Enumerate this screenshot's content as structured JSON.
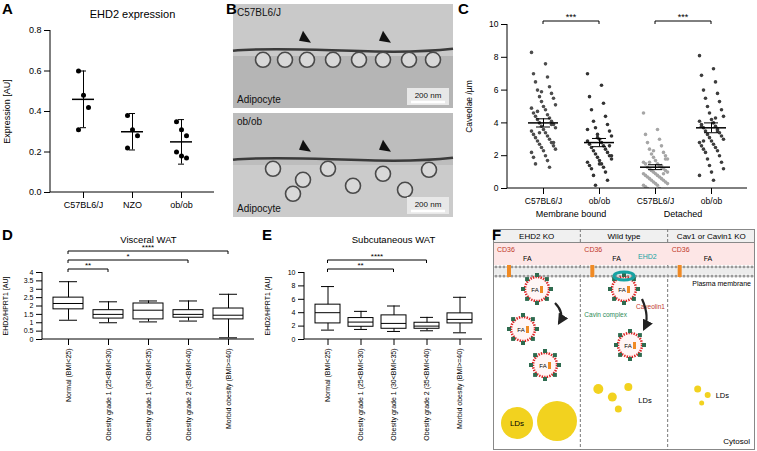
{
  "chart_data": [
    {
      "type": "scatter",
      "panel": "A",
      "title": "EHD2 expression",
      "ylabel": "Expression [AU]",
      "categories": [
        "C57BL6/J",
        "NZO",
        "ob/ob"
      ],
      "values": [
        [
          0.6,
          0.48,
          0.42,
          0.31
        ],
        [
          0.38,
          0.31,
          0.28,
          0.22
        ],
        [
          0.35,
          0.31,
          0.28,
          0.2,
          0.18,
          0.17
        ]
      ],
      "means": [
        0.46,
        0.3,
        0.25
      ],
      "sd": [
        0.14,
        0.09,
        0.11
      ],
      "color": "#000000",
      "ylim": [
        0,
        0.8
      ],
      "yticks": [
        {
          "value": 0,
          "label": "0.0"
        },
        0.2,
        0.4,
        0.6,
        0.8
      ]
    },
    {
      "type": "image",
      "panel": "B",
      "images": [
        {
          "label": "C57BL6/J",
          "cell": "Adipocyte",
          "scale_bar": "200 nm"
        },
        {
          "label": "ob/ob",
          "cell": "Adipocyte",
          "scale_bar": "200 nm"
        }
      ]
    },
    {
      "type": "scatter",
      "panel": "C",
      "ylabel": "Caveolae /µm",
      "categories": [
        "C57BL6/J",
        "ob/ob",
        "C57BL6/J",
        "ob/ob"
      ],
      "groups": [
        {
          "label": "Membrane bound",
          "members": [
            0,
            1
          ]
        },
        {
          "label": "Detached",
          "members": [
            2,
            3
          ]
        }
      ],
      "values": [
        [
          8.3,
          7.6,
          7.0,
          6.8,
          6.5,
          6.2,
          6.0,
          5.8,
          5.6,
          5.5,
          5.3,
          5.1,
          5.0,
          4.9,
          4.8,
          4.6,
          4.5,
          4.4,
          4.3,
          4.2,
          4.1,
          4.0,
          3.9,
          3.8,
          3.7,
          3.6,
          3.5,
          3.4,
          3.3,
          3.2,
          3.1,
          3.0,
          2.9,
          2.8,
          2.7,
          2.6,
          2.5,
          2.4,
          2.3,
          2.2,
          2.0,
          1.9,
          1.7,
          1.5,
          1.3,
          4.7,
          3.9,
          3.4,
          2.8,
          5.9
        ],
        [
          7.0,
          6.3,
          5.6,
          5.2,
          4.8,
          4.4,
          4.1,
          3.9,
          3.7,
          3.5,
          3.3,
          3.2,
          3.0,
          2.9,
          2.8,
          2.7,
          2.6,
          2.5,
          2.4,
          2.3,
          2.2,
          2.1,
          2.0,
          1.9,
          1.8,
          1.7,
          1.6,
          1.5,
          1.4,
          1.3,
          1.2,
          1.0,
          0.8,
          0.5,
          0.2,
          2.6,
          3.1,
          2.0,
          1.5,
          3.6
        ],
        [
          4.6,
          3.6,
          3.3,
          3.0,
          2.8,
          2.6,
          2.4,
          2.2,
          2.1,
          2.0,
          1.9,
          1.8,
          1.7,
          1.6,
          1.5,
          1.5,
          1.4,
          1.3,
          1.3,
          1.2,
          1.2,
          1.1,
          1.1,
          1.0,
          1.0,
          0.9,
          0.9,
          0.8,
          0.8,
          0.7,
          0.7,
          0.6,
          0.6,
          0.5,
          0.5,
          0.4,
          0.4,
          0.3,
          0.3,
          0.2,
          0.2,
          0.1,
          0.0,
          0.0,
          1.4,
          1.6,
          0.9,
          1.1,
          1.8,
          2.3
        ],
        [
          8.1,
          7.3,
          6.9,
          6.5,
          6.0,
          5.8,
          5.5,
          5.3,
          5.0,
          4.8,
          4.6,
          4.4,
          4.2,
          4.1,
          4.0,
          3.9,
          3.8,
          3.7,
          3.6,
          3.5,
          3.4,
          3.3,
          3.2,
          3.1,
          3.0,
          2.9,
          2.8,
          2.7,
          2.6,
          2.5,
          2.4,
          2.3,
          2.2,
          2.0,
          1.8,
          1.6,
          1.4,
          1.2,
          1.0,
          0.8,
          0.5,
          3.8,
          4.3,
          2.9,
          3.5
        ]
      ],
      "means": [
        4.0,
        2.8,
        1.3,
        3.7
      ],
      "sem": [
        0.25,
        0.25,
        0.15,
        0.3
      ],
      "colors": [
        "#4d4d4d",
        "#333333",
        "#a6a6a6",
        "#3d3d3d"
      ],
      "comparisons": [
        {
          "from": 0,
          "to": 1,
          "label": "***"
        },
        {
          "from": 2,
          "to": 3,
          "label": "***"
        }
      ],
      "ylim": [
        0,
        10
      ],
      "yticks": [
        0,
        2,
        4,
        6,
        8,
        10
      ]
    },
    {
      "type": "box",
      "panel": "D",
      "title": "Visceral WAT",
      "ylabel": "EHD2/HPRT1 [AU]",
      "categories": [
        "Normal (BMI<25)",
        "Obesity grade 1 (25<BMI<30)",
        "Obesity grade 1 (30<BMI<35)",
        "Obesity grade 2 (35<BMI<40)",
        "Morbid obesity (BMI>=40)"
      ],
      "min": [
        1.15,
        1.0,
        1.05,
        1.1,
        0.1
      ],
      "q1": [
        1.8,
        1.25,
        1.2,
        1.3,
        1.2
      ],
      "median": [
        2.15,
        1.5,
        1.75,
        1.5,
        1.45
      ],
      "q3": [
        2.5,
        1.75,
        2.15,
        1.75,
        1.85
      ],
      "max": [
        3.45,
        2.25,
        2.3,
        2.3,
        2.7
      ],
      "comparisons": [
        {
          "from": 0,
          "to": 1,
          "label": "**"
        },
        {
          "from": 0,
          "to": 3,
          "label": "*"
        },
        {
          "from": 0,
          "to": 4,
          "label": "****"
        }
      ],
      "ylim": [
        0,
        4
      ],
      "yticks": [
        0,
        0.5,
        1,
        1.5,
        2,
        2.5,
        3,
        3.5,
        4
      ]
    },
    {
      "type": "box",
      "panel": "E",
      "title": "Subcutaneous WAT",
      "ylabel": "EHD2/HPRT1 [AU]",
      "categories": [
        "Normal (BMI<25)",
        "Obesity grade 1 (25<BMI<30)",
        "Obesity grade 1 (30<BMI<35)",
        "Obesity grade 2 (35<BMI<40)",
        "Morbid obesity (BMI>=40)"
      ],
      "min": [
        1.4,
        1.5,
        1.2,
        1.3,
        1.0
      ],
      "q1": [
        2.4,
        1.9,
        1.6,
        1.6,
        2.4
      ],
      "median": [
        4.0,
        2.6,
        2.4,
        2.0,
        3.0
      ],
      "q3": [
        5.2,
        3.2,
        3.6,
        2.5,
        3.9
      ],
      "max": [
        7.9,
        4.2,
        5.0,
        3.3,
        6.3
      ],
      "comparisons": [
        {
          "from": 0,
          "to": 2,
          "label": "**"
        },
        {
          "from": 0,
          "to": 3,
          "label": "****"
        }
      ],
      "ylim": [
        0,
        10
      ],
      "yticks": [
        0,
        2,
        4,
        6,
        8,
        10
      ]
    },
    {
      "type": "diagram",
      "panel": "F",
      "columns": [
        "EHD2 KO",
        "Wild type",
        "Cav1 or Cavin1 KO"
      ],
      "receptor": "CD36",
      "cargo": "FA",
      "membrane": "Plasma membrane",
      "ehd2": "EHD2",
      "cavin": "Cavin complex",
      "caveolin": "Caveolin1",
      "droplets": "LDs",
      "compartment": "Cytosol"
    }
  ]
}
